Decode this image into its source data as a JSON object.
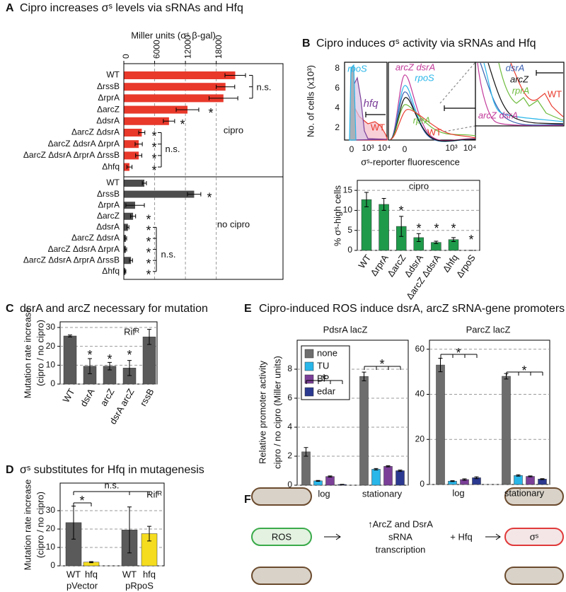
{
  "chart_data": [
    {
      "type": "barh",
      "panel": "A",
      "title": "Cipro increases σˢ levels via sRNAs and Hfq",
      "x_label": "Miller units (σˢ β-gal)",
      "categories": [
        "WT",
        "ΔrssB",
        "ΔrprA",
        "ΔarcZ",
        "ΔdsrA",
        "ΔarcZ ΔdsrA",
        "ΔarcZ ΔdsrA ΔrprA",
        "ΔarcZ ΔdsrA ΔrprA ΔrssB",
        "Δhfq"
      ],
      "series": [
        {
          "name": "cipro",
          "color": "#e8392b",
          "values": [
            21700,
            19800,
            19400,
            12400,
            8800,
            3500,
            2900,
            2900,
            1100
          ],
          "errors": [
            2000,
            1800,
            2800,
            2200,
            1100,
            600,
            700,
            600,
            500
          ]
        },
        {
          "name": "no cipro",
          "color": "#4d4d4d",
          "values": [
            4000,
            13700,
            2200,
            1800,
            800,
            400,
            400,
            1400,
            300
          ],
          "errors": [
            400,
            1300,
            1800,
            500,
            200,
            150,
            150,
            300,
            100
          ]
        }
      ],
      "xlim": [
        0,
        31000
      ],
      "xticks": [
        0,
        6000,
        12000,
        18000
      ],
      "grid": true,
      "annotations": [
        "n.s.",
        "*",
        "*",
        "*",
        "*",
        "*",
        "*",
        "n.s.",
        "*",
        "*",
        "*",
        "*",
        "*",
        "*",
        "*",
        "n.s."
      ]
    },
    {
      "type": "bar",
      "panel": "B",
      "title": "Cipro induces σˢ activity via sRNAs and Hfq",
      "subtitle": "cipro",
      "y_label": "% σˢ-high cells",
      "categories": [
        "WT",
        "ΔrprA",
        "ΔarcZ",
        "ΔdsrA",
        "ΔarcZ ΔdsrA",
        "Δhfq",
        "ΔrpoS"
      ],
      "values": [
        12.7,
        11.5,
        6,
        3.2,
        2,
        2.7,
        0
      ],
      "errors": [
        1.8,
        1.5,
        2.5,
        1,
        0.3,
        0.5,
        0
      ],
      "color": "#1f9a4a",
      "ylim": [
        0,
        17.5
      ],
      "yticks": [
        0,
        5,
        10,
        15
      ],
      "grid": true,
      "annotations": [
        "*",
        "*",
        "*",
        "*",
        "*"
      ]
    },
    {
      "type": "bar",
      "panel": "C",
      "title": "dsrA and arcZ necessary for mutation",
      "y_label": "Mutation rate increase",
      "y_sublabel": "(cipro / no cipro)",
      "categories": [
        "WT",
        "dsrA",
        "arcZ",
        "dsrA arcZ",
        "rssB"
      ],
      "values": [
        25.5,
        9.5,
        9.5,
        8.5,
        25
      ],
      "errors": [
        0.5,
        4,
        2,
        4,
        4
      ],
      "color": "#5a5a5a",
      "ylim": [
        0,
        33
      ],
      "yticks": [
        0,
        10,
        20,
        30
      ],
      "grid": true,
      "annotations": [
        "Rifᴿ",
        "*",
        "*",
        "*"
      ]
    },
    {
      "type": "bar",
      "panel": "D",
      "title": "σˢ substitutes for Hfq in mutagenesis",
      "y_label": "Mutation rate increase",
      "y_sublabel": "(cipro / no cipro)",
      "categories": [
        "WT",
        "hfq",
        "WT",
        "hfq"
      ],
      "groups": [
        "pVector",
        "pRpoS"
      ],
      "values": [
        23.5,
        2,
        19.5,
        17.5
      ],
      "errors": [
        9,
        0.3,
        12.5,
        4
      ],
      "colors": [
        "#5a5a5a",
        "#f5dc1e",
        "#5a5a5a",
        "#f5dc1e"
      ],
      "ylim": [
        0,
        45
      ],
      "yticks": [
        0,
        10,
        20,
        30
      ],
      "grid": true,
      "annotations": [
        "*",
        "n.s.",
        "Rifᴿ"
      ]
    },
    {
      "type": "grouped_bar",
      "panel": "E",
      "title": "Cipro-induced ROS induce dsrA, arcZ sRNA-gene promoters",
      "subtitle": "PdsrA lacZ",
      "y_label": "Relative promoter activity",
      "y_sublabel": "cipro / no cipro (Miller units)",
      "categories": [
        "log",
        "stationary"
      ],
      "series": [
        {
          "name": "none",
          "color": "#6d6d6d",
          "values": [
            2.3,
            7.5
          ],
          "errors": [
            0.3,
            0.3
          ]
        },
        {
          "name": "TU",
          "color": "#29b6e9",
          "values": [
            0.3,
            1.1
          ],
          "errors": [
            0.03,
            0.05
          ]
        },
        {
          "name": "BP",
          "color": "#7b3f98",
          "values": [
            0.6,
            1.3
          ],
          "errors": [
            0.04,
            0.04
          ]
        },
        {
          "name": "edar",
          "color": "#2b3990",
          "values": [
            0.05,
            1.0
          ],
          "errors": [
            0.01,
            0.04
          ]
        }
      ],
      "ylim": [
        0,
        10
      ],
      "yticks": [
        0,
        2,
        4,
        6,
        8
      ],
      "grid": true,
      "legend": "upper left",
      "annotations": [
        "*",
        "*"
      ]
    },
    {
      "type": "grouped_bar",
      "subtitle": "ParcZ lacZ",
      "categories": [
        "log",
        "stationary"
      ],
      "series": [
        {
          "color": "#6d6d6d",
          "values": [
            53,
            48
          ],
          "errors": [
            3,
            1.2
          ]
        },
        {
          "color": "#29b6e9",
          "values": [
            1.5,
            4
          ],
          "errors": [
            0.2,
            0.3
          ]
        },
        {
          "color": "#7b3f98",
          "values": [
            2.2,
            3.6
          ],
          "errors": [
            0.3,
            0.2
          ]
        },
        {
          "color": "#2b3990",
          "values": [
            3,
            2.4
          ],
          "errors": [
            0.4,
            0.2
          ]
        }
      ],
      "ylim": [
        0,
        64
      ],
      "yticks": [
        0,
        20,
        40,
        60
      ],
      "grid": true,
      "annotations": [
        "*",
        "*"
      ]
    }
  ],
  "flow_histograms": {
    "y_label": "No. of cells (x10³)",
    "x_label": "σˢ-reporter fluorescence",
    "yticks": [
      8,
      6,
      4,
      2
    ],
    "xticks": [
      "0",
      "10³",
      "10⁴",
      "0",
      "10³",
      "10⁴"
    ],
    "labels": [
      "rpoS",
      "hfq",
      "WT",
      "arcZ dsrA",
      "rpoS",
      "rprA",
      "WT",
      "dsrA",
      "arcZ",
      "rprA",
      "WT",
      "arcZ dsrA"
    ]
  },
  "diagram": {
    "panel": "F",
    "nodes": [
      "ROS",
      "σˢ"
    ],
    "text_lines": [
      "↑ArcZ and DsrA",
      "sRNA",
      "transcription"
    ],
    "operator": "+ Hfq"
  }
}
